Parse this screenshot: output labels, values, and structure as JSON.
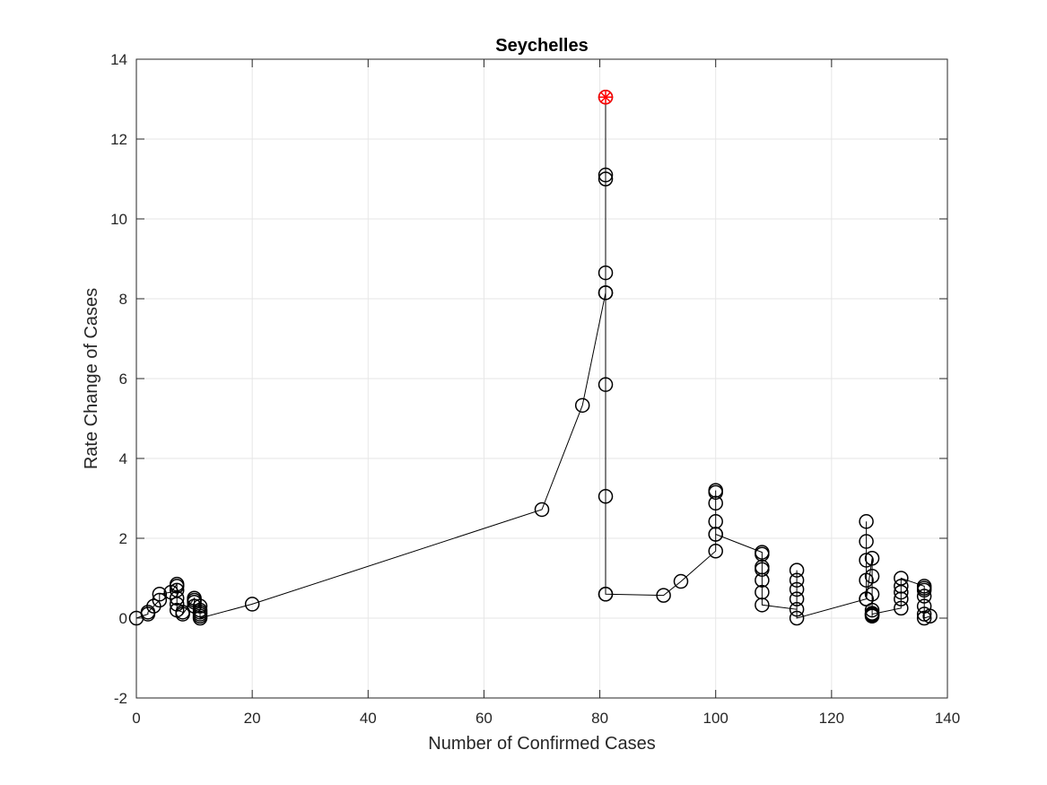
{
  "chart_data": {
    "type": "line",
    "title": "Seychelles",
    "xlabel": "Number of Confirmed Cases",
    "ylabel": "Rate Change of Cases",
    "xlim": [
      0,
      140
    ],
    "ylim": [
      -2,
      14
    ],
    "xticks": [
      0,
      20,
      40,
      60,
      80,
      100,
      120,
      140
    ],
    "yticks": [
      -2,
      0,
      2,
      4,
      6,
      8,
      10,
      12,
      14
    ],
    "grid": true,
    "line_color": "#000000",
    "marker": "circle",
    "series": [
      {
        "x": [
          0,
          2,
          2,
          3,
          4,
          4,
          6,
          7,
          7,
          7,
          7,
          7,
          7,
          8,
          8,
          10,
          10,
          10,
          10,
          11,
          11,
          11,
          11,
          11,
          11,
          20,
          70,
          77,
          81,
          81,
          81,
          81,
          81,
          81,
          81,
          81,
          81,
          81,
          91,
          94,
          100,
          100,
          100,
          100,
          100,
          100,
          100,
          108,
          108,
          108,
          108,
          108,
          108,
          108,
          114,
          114,
          114,
          114,
          114,
          114,
          126,
          126,
          126,
          126,
          126,
          126,
          127,
          127,
          127,
          127,
          127,
          127,
          127,
          127,
          132,
          132,
          132,
          132,
          132,
          136,
          136,
          136,
          136,
          136,
          136,
          136,
          137
        ],
        "y": [
          0,
          0.1,
          0.15,
          0.3,
          0.45,
          0.6,
          0.65,
          0.85,
          0.8,
          0.7,
          0.5,
          0.35,
          0.2,
          0.15,
          0.1,
          0.5,
          0.45,
          0.4,
          0.3,
          0.3,
          0.2,
          0.15,
          0.1,
          0.05,
          0,
          0.35,
          2.72,
          5.33,
          8.15,
          8.65,
          11.0,
          11.1,
          13.05,
          5.85,
          3.05,
          0.6,
          8.15,
          0.6,
          0.57,
          0.92,
          1.68,
          2.1,
          2.42,
          2.88,
          3.15,
          3.2,
          2.1,
          1.65,
          1.6,
          1.28,
          1.22,
          0.95,
          0.65,
          0.33,
          0.22,
          0.48,
          0.72,
          0.95,
          1.2,
          0,
          0.48,
          0.95,
          1.45,
          1.92,
          2.42,
          0.48,
          1.5,
          1.05,
          0.6,
          0.2,
          0.12,
          0.08,
          0.05,
          0.1,
          0.25,
          0.48,
          0.65,
          0.8,
          1.0,
          0.8,
          0.75,
          0.7,
          0.55,
          0.3,
          0.1,
          0.0,
          0.05
        ]
      }
    ],
    "highlight": {
      "x": 81,
      "y": 13.05,
      "color": "#ff0000",
      "marker": "star"
    }
  }
}
